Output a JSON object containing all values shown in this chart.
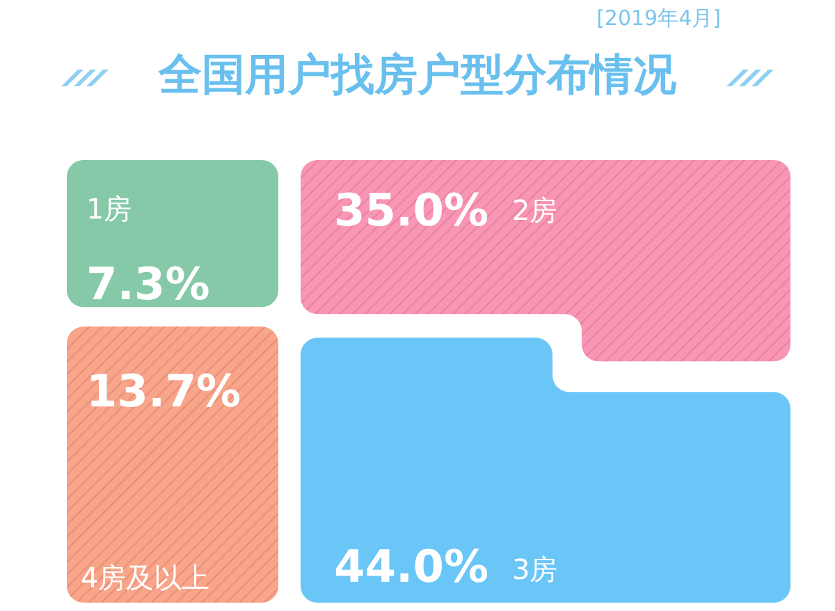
{
  "chart_data": {
    "type": "other",
    "title": "全国用户找房户型分布情况",
    "subtitle": "[2019年4月]",
    "categories": [
      "1房",
      "2房",
      "3房",
      "4房及以上"
    ],
    "values": [
      7.3,
      35.0,
      44.0,
      13.7
    ],
    "value_labels": [
      "7.3%",
      "35.0%",
      "44.0%",
      "13.7%"
    ],
    "colors": [
      "#85c9a8",
      "#f996b5",
      "#69c6f7",
      "#f9a58a"
    ]
  }
}
